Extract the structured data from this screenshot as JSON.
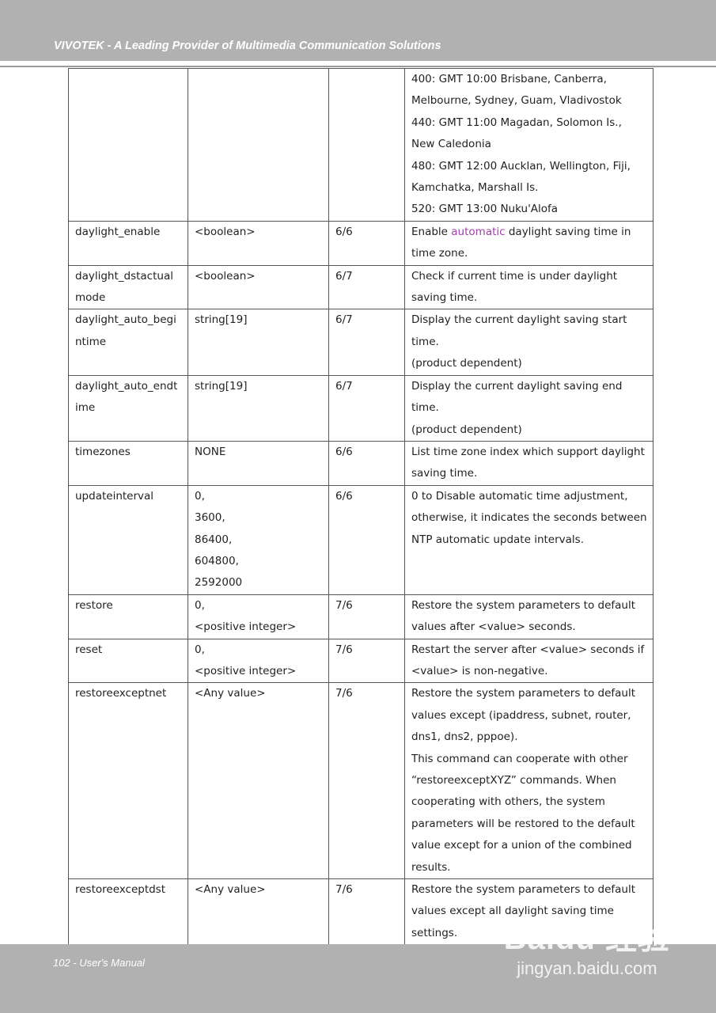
{
  "header": {
    "title": "VIVOTEK - A Leading Provider of Multimedia Communication Solutions"
  },
  "footer": {
    "page": "102 - User's Manual",
    "watermark_logo": "Baidu 经验",
    "watermark_url": "jingyan.baidu.com"
  },
  "colors": {
    "band": "#b1b1b1",
    "highlight": "#a040a8"
  },
  "rows": [
    {
      "name": [
        ""
      ],
      "value": [
        ""
      ],
      "security": [
        ""
      ],
      "description": [
        "400: GMT 10:00 Brisbane, Canberra,",
        "Melbourne, Sydney, Guam, Vladivostok",
        "440: GMT 11:00 Magadan, Solomon Is.,",
        "New Caledonia",
        "480: GMT 12:00 Aucklan, Wellington, Fiji,",
        "Kamchatka, Marshall Is.",
        "520: GMT 13:00 Nuku'Alofa"
      ]
    },
    {
      "name": [
        "daylight_enable"
      ],
      "value": [
        "<boolean>"
      ],
      "security": [
        "6/6"
      ],
      "description": [
        [
          {
            "text": "Enable "
          },
          {
            "text": "automatic",
            "hl": true
          },
          {
            "text": " daylight saving time in"
          }
        ],
        "time zone."
      ]
    },
    {
      "name": [
        "daylight_dstactual",
        "mode"
      ],
      "value": [
        "<boolean>"
      ],
      "security": [
        "6/7"
      ],
      "description": [
        "Check if current time is under daylight",
        "saving time."
      ]
    },
    {
      "name": [
        "daylight_auto_begi",
        "ntime"
      ],
      "value": [
        "string[19]"
      ],
      "security": [
        "6/7"
      ],
      "description": [
        "Display the current daylight saving start",
        "time.",
        "(product dependent)"
      ]
    },
    {
      "name": [
        "daylight_auto_endt",
        "ime"
      ],
      "value": [
        "string[19]"
      ],
      "security": [
        "6/7"
      ],
      "description": [
        "Display the current daylight saving end",
        "time.",
        "(product dependent)"
      ]
    },
    {
      "name": [
        "timezones"
      ],
      "value": [
        "NONE"
      ],
      "security": [
        "6/6"
      ],
      "description": [
        "List time zone index which support daylight",
        "saving time."
      ]
    },
    {
      "name": [
        "updateinterval"
      ],
      "value": [
        "0,",
        "3600,",
        "86400,",
        "604800,",
        "2592000"
      ],
      "security": [
        "6/6"
      ],
      "description": [
        "0 to Disable automatic time adjustment,",
        "otherwise, it indicates the seconds between",
        "NTP automatic update intervals."
      ]
    },
    {
      "name": [
        "restore"
      ],
      "value": [
        "0,",
        "<positive integer>"
      ],
      "security": [
        "7/6"
      ],
      "description": [
        "Restore the system parameters to default",
        "values after <value> seconds."
      ]
    },
    {
      "name": [
        "reset"
      ],
      "value": [
        "0,",
        "<positive integer>"
      ],
      "security": [
        "7/6"
      ],
      "description": [
        "Restart the server after <value> seconds if",
        "<value> is non-negative."
      ]
    },
    {
      "name": [
        "restoreexceptnet"
      ],
      "value": [
        "<Any value>"
      ],
      "security": [
        "7/6"
      ],
      "description": [
        "Restore the system parameters to default",
        "values except (ipaddress, subnet, router,",
        "dns1, dns2, pppoe).",
        "This command can cooperate with other",
        "“restoreexceptXYZ” commands. When",
        "cooperating with others, the system",
        "parameters will be restored to the default",
        "value except for a union of the combined",
        "results."
      ]
    },
    {
      "name": [
        "restoreexceptdst"
      ],
      "value": [
        "<Any value>"
      ],
      "security": [
        "7/6"
      ],
      "description": [
        "Restore the system parameters to default",
        "values except all daylight saving time",
        "settings."
      ]
    }
  ]
}
